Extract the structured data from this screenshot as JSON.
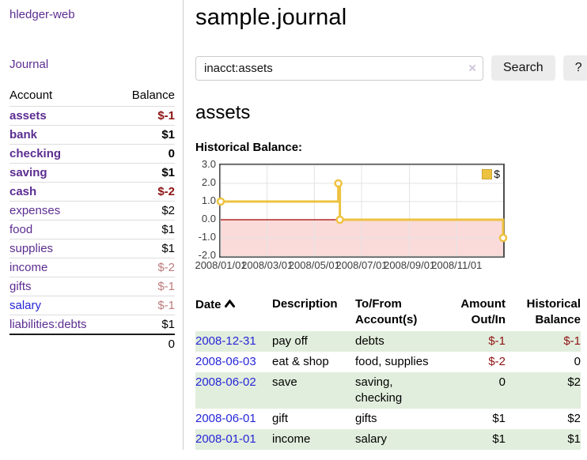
{
  "app": {
    "title": "hledger-web"
  },
  "nav": {
    "journal": "Journal"
  },
  "sidebar": {
    "headers": {
      "account": "Account",
      "balance": "Balance"
    },
    "accounts": [
      {
        "name": "assets",
        "level": 1,
        "bold": true,
        "balance": "$-1",
        "balance_tone": "neg-strong"
      },
      {
        "name": "bank",
        "level": 2,
        "bold": true,
        "balance": "$1",
        "balance_tone": ""
      },
      {
        "name": "checking",
        "level": 3,
        "bold": true,
        "balance": "0",
        "balance_tone": ""
      },
      {
        "name": "saving",
        "level": 3,
        "bold": true,
        "balance": "$1",
        "balance_tone": ""
      },
      {
        "name": "cash",
        "level": 2,
        "bold": true,
        "balance": "$-2",
        "balance_tone": "neg-strong"
      },
      {
        "name": "expenses",
        "level": 1,
        "bold": false,
        "balance": "$2",
        "balance_tone": ""
      },
      {
        "name": "food",
        "level": 2,
        "bold": false,
        "balance": "$1",
        "balance_tone": ""
      },
      {
        "name": "supplies",
        "level": 2,
        "bold": false,
        "balance": "$1",
        "balance_tone": ""
      },
      {
        "name": "income",
        "level": 1,
        "bold": false,
        "balance": "$-2",
        "balance_tone": "neg-soft"
      },
      {
        "name": "gifts",
        "level": 2,
        "bold": false,
        "balance": "$-1",
        "balance_tone": "neg-soft"
      },
      {
        "name": "salary",
        "level": 2,
        "bold": false,
        "blue": true,
        "balance": "$-1",
        "balance_tone": "neg-soft"
      },
      {
        "name": "liabilities:debts",
        "level": 1,
        "bold": false,
        "balance": "$1",
        "balance_tone": ""
      }
    ],
    "total": "0"
  },
  "header": {
    "title": "sample.journal"
  },
  "search": {
    "value": "inacct:assets",
    "clear_icon": "×",
    "button_label": "Search",
    "help_label": "?"
  },
  "account_page": {
    "heading": "assets",
    "chart_title": "Historical Balance:"
  },
  "chart_data": {
    "type": "line",
    "step": true,
    "title": "Historical Balance",
    "xlim": [
      "2008/01/01",
      "2008/12/31"
    ],
    "ylim": [
      -2,
      3
    ],
    "y_ticks": [
      "3.0",
      "2.0",
      "1.0",
      "0.0",
      "-1.0",
      "-2.0"
    ],
    "x_ticks": [
      "2008/01/01",
      "2008/03/01",
      "2008/05/01",
      "2008/07/01",
      "2008/09/01",
      "2008/11/01"
    ],
    "series": [
      {
        "name": "$",
        "color": "#edc240",
        "points": [
          [
            "2008/01/01",
            1
          ],
          [
            "2008/06/01",
            2
          ],
          [
            "2008/06/03",
            0
          ],
          [
            "2008/12/31",
            -1
          ]
        ]
      }
    ],
    "legend_position": "top-right",
    "grid": true,
    "grid_color": "#e3e3e3",
    "negative_region_color": "#fbdada",
    "zero_line_color": "#a40000",
    "border_color": "#4f4f4f"
  },
  "register": {
    "headers": {
      "date": "Date",
      "description": "Description",
      "accounts": "To/From Account(s)",
      "amount": "Amount Out/In",
      "balance": "Historical Balance"
    },
    "rows": [
      {
        "date": "2008-12-31",
        "description": "pay off",
        "accounts": "debts",
        "amount": "$-1",
        "amount_neg": true,
        "balance": "$-1",
        "balance_neg": true
      },
      {
        "date": "2008-06-03",
        "description": "eat & shop",
        "accounts": "food, supplies",
        "amount": "$-2",
        "amount_neg": true,
        "balance": "0",
        "balance_neg": false
      },
      {
        "date": "2008-06-02",
        "description": "save",
        "accounts": "saving, checking",
        "amount": "0",
        "amount_neg": false,
        "balance": "$2",
        "balance_neg": false
      },
      {
        "date": "2008-06-01",
        "description": "gift",
        "accounts": "gifts",
        "amount": "$1",
        "amount_neg": false,
        "balance": "$2",
        "balance_neg": false
      },
      {
        "date": "2008-01-01",
        "description": "income",
        "accounts": "salary",
        "amount": "$1",
        "amount_neg": false,
        "balance": "$1",
        "balance_neg": false
      }
    ]
  },
  "colors": {
    "accent_purple": "#5c2d91",
    "link_blue": "#2626d8",
    "negative_strong": "#8e1313",
    "negative_soft": "#bb7b7b",
    "row_green": "#e2eedd",
    "series_yellow": "#edc240"
  }
}
